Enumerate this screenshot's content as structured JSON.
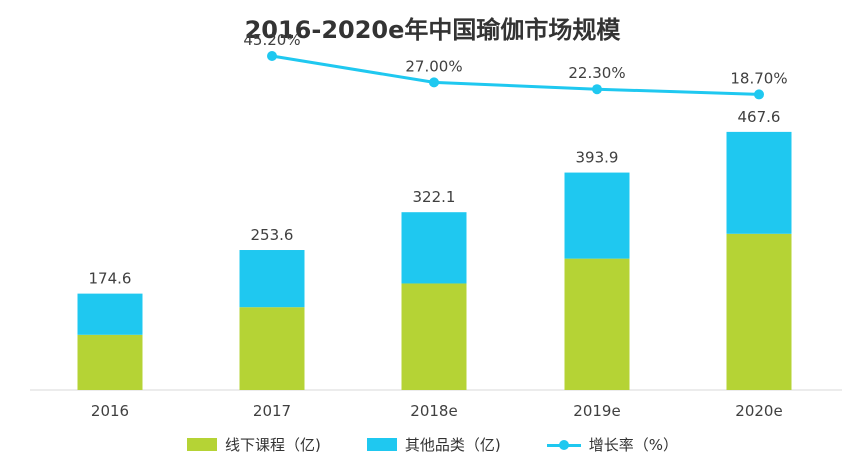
{
  "chart_data": {
    "type": "bar",
    "title": "2016-2020e年中国瑜伽市场规模",
    "categories": [
      "2016",
      "2017",
      "2018e",
      "2019e",
      "2020e"
    ],
    "totals": [
      174.6,
      253.6,
      322.1,
      393.9,
      467.6
    ],
    "series": [
      {
        "name": "线下课程（亿)",
        "type": "bar",
        "stack": "total",
        "color": "#b5d335",
        "values": [
          100.0,
          150.0,
          193.0,
          238.0,
          283.0
        ]
      },
      {
        "name": "其他品类（亿)",
        "type": "bar",
        "stack": "total",
        "color": "#1fc8f0",
        "values": [
          74.6,
          103.6,
          129.1,
          155.9,
          184.6
        ]
      },
      {
        "name": "增长率（%）",
        "type": "line",
        "color": "#1fc8f0",
        "x": [
          "2017",
          "2018e",
          "2019e",
          "2020e"
        ],
        "values": [
          45.2,
          27.0,
          22.3,
          18.7
        ],
        "labels": [
          "45.20%",
          "27.00%",
          "22.30%",
          "18.70%"
        ]
      }
    ],
    "xlabel": "",
    "ylabel": "",
    "legend_position": "bottom",
    "grid": false
  }
}
